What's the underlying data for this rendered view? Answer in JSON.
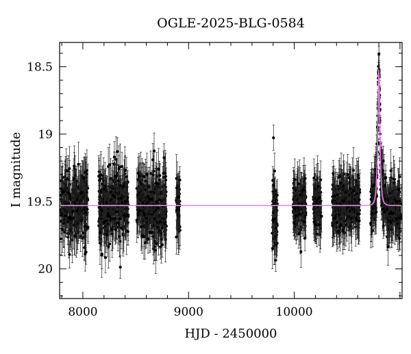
{
  "chart_data": {
    "type": "scatter",
    "title": "OGLE-2025-BLG-0584",
    "xlabel": "HJD - 2450000",
    "ylabel": "I magnitude",
    "xlim": [
      7780,
      11020
    ],
    "ylim": [
      20.22,
      18.32
    ],
    "y_inverted": true,
    "x_ticks": [
      8000,
      9000,
      10000
    ],
    "y_ticks": [
      18.5,
      19,
      19.5,
      20
    ],
    "baseline_magnitude": 19.53,
    "typical_error": 0.13,
    "model": {
      "color": "#ee82ee",
      "type": "point-lens",
      "t0": 10800,
      "peak_magnitude": 18.52,
      "baseline": 19.53,
      "tE": 18
    },
    "point_color": "#000000",
    "seasons": [
      {
        "start": 7790,
        "end": 8050,
        "mean_mag": 19.53,
        "scatter": 0.16
      },
      {
        "start": 8150,
        "end": 8430,
        "mean_mag": 19.53,
        "scatter": 0.16
      },
      {
        "start": 8510,
        "end": 8790,
        "mean_mag": 19.53,
        "scatter": 0.16
      },
      {
        "start": 8880,
        "end": 8920,
        "mean_mag": 19.54,
        "scatter": 0.14
      },
      {
        "start": 9790,
        "end": 9840,
        "mean_mag": 19.56,
        "scatter": 0.22
      },
      {
        "start": 9990,
        "end": 10110,
        "mean_mag": 19.53,
        "scatter": 0.13
      },
      {
        "start": 10180,
        "end": 10260,
        "mean_mag": 19.52,
        "scatter": 0.12
      },
      {
        "start": 10360,
        "end": 10620,
        "mean_mag": 19.53,
        "scatter": 0.13
      },
      {
        "start": 10720,
        "end": 11010,
        "mean_mag": 19.53,
        "scatter": 0.13
      }
    ]
  }
}
